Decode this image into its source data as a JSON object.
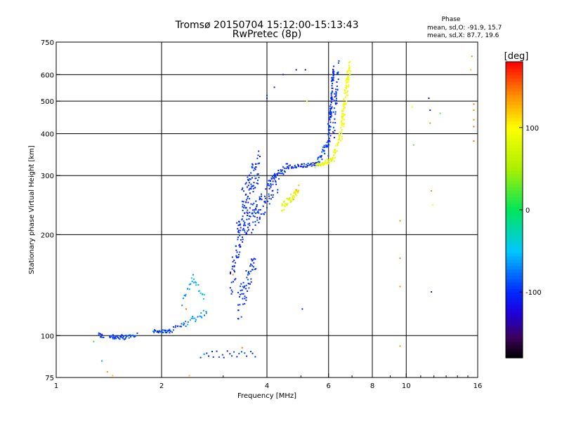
{
  "chart_data": {
    "type": "scatter",
    "title": "Tromsø 20150704 15:12:00-15:13:43",
    "subtitle": "RwPretec (8p)",
    "xlabel": "Frequency [MHz]",
    "ylabel": "Stationary phase Virtual Height [km]",
    "x_scale": "log",
    "y_scale": "log",
    "xlim": [
      1,
      16
    ],
    "ylim": [
      75,
      750
    ],
    "x_ticks": [
      1,
      2,
      4,
      6,
      8,
      10,
      16
    ],
    "x_tick_labels": [
      "1",
      "2",
      "4",
      "6",
      "8",
      "10",
      "16"
    ],
    "y_ticks": [
      75,
      100,
      200,
      300,
      400,
      500,
      600,
      750
    ],
    "y_tick_labels": [
      "75",
      "100",
      "200",
      "300",
      "400",
      "500",
      "600",
      "750"
    ],
    "grid": true,
    "phase_info": {
      "heading": "Phase",
      "line_o": "mean, sd,O: -91.9, 15.7",
      "line_x": "mean, sd,X:  87.7, 19.6"
    },
    "colorbar": {
      "label": "[deg]",
      "min": -180,
      "max": 180,
      "ticks": [
        100,
        0,
        -100
      ],
      "tick_labels": [
        "100",
        "0",
        "-100"
      ],
      "colormap": "rainbow"
    },
    "segments": [
      {
        "trace": "O",
        "phase": -100,
        "x0": 1.32,
        "x1": 1.36,
        "y0": 101,
        "y1": 99,
        "n": 10,
        "spread_y": 1.5
      },
      {
        "trace": "O",
        "phase": -95,
        "x0": 1.42,
        "x1": 1.58,
        "y0": 100,
        "y1": 98,
        "n": 30,
        "spread_y": 2
      },
      {
        "trace": "O",
        "phase": -90,
        "x0": 1.58,
        "x1": 1.7,
        "y0": 99,
        "y1": 101,
        "n": 16,
        "spread_y": 1.5
      },
      {
        "trace": "O",
        "phase": -95,
        "x0": 1.9,
        "x1": 2.1,
        "y0": 103,
        "y1": 103,
        "n": 30,
        "spread_y": 1
      },
      {
        "trace": "O",
        "phase": -95,
        "x0": 2.1,
        "x1": 2.3,
        "y0": 103,
        "y1": 108,
        "n": 14,
        "spread_y": 2
      },
      {
        "trace": "O",
        "phase": -70,
        "x0": 2.3,
        "x1": 2.7,
        "y0": 108,
        "y1": 118,
        "n": 22,
        "spread_y": 3
      },
      {
        "trace": "O",
        "phase": -60,
        "x0": 2.3,
        "x1": 2.45,
        "y0": 125,
        "y1": 150,
        "n": 12,
        "spread_y": 3
      },
      {
        "trace": "O",
        "phase": -55,
        "x0": 2.45,
        "x1": 2.65,
        "y0": 150,
        "y1": 128,
        "n": 14,
        "spread_y": 3
      },
      {
        "trace": "O",
        "phase": -100,
        "x0": 3.15,
        "x1": 3.35,
        "y0": 140,
        "y1": 200,
        "n": 40,
        "spread_y": 18
      },
      {
        "trace": "O",
        "phase": -100,
        "x0": 3.3,
        "x1": 3.7,
        "y0": 120,
        "y1": 170,
        "n": 60,
        "spread_y": 14
      },
      {
        "trace": "O",
        "phase": -100,
        "x0": 3.3,
        "x1": 3.8,
        "y0": 200,
        "y1": 240,
        "n": 80,
        "spread_y": 22
      },
      {
        "trace": "O",
        "phase": -100,
        "x0": 3.4,
        "x1": 3.8,
        "y0": 240,
        "y1": 330,
        "n": 80,
        "spread_y": 35
      },
      {
        "trace": "O",
        "phase": -100,
        "x0": 3.8,
        "x1": 4.3,
        "y0": 240,
        "y1": 290,
        "n": 50,
        "spread_y": 22
      },
      {
        "trace": "O",
        "phase": -100,
        "x0": 4.0,
        "x1": 4.6,
        "y0": 280,
        "y1": 320,
        "n": 40,
        "spread_y": 10
      },
      {
        "trace": "O",
        "phase": -100,
        "x0": 4.6,
        "x1": 5.6,
        "y0": 318,
        "y1": 325,
        "n": 50,
        "spread_y": 4
      },
      {
        "trace": "O",
        "phase": -90,
        "x0": 5.6,
        "x1": 6.0,
        "y0": 330,
        "y1": 380,
        "n": 30,
        "spread_y": 10
      },
      {
        "trace": "O",
        "phase": -100,
        "x0": 6.0,
        "x1": 6.2,
        "y0": 380,
        "y1": 630,
        "n": 90,
        "spread_y": 40
      },
      {
        "trace": "O",
        "phase": -100,
        "x0": 6.2,
        "x1": 6.4,
        "y0": 420,
        "y1": 620,
        "n": 40,
        "spread_y": 40
      },
      {
        "trace": "O",
        "phase": -100,
        "x0": 2.6,
        "x1": 3.7,
        "y0": 88,
        "y1": 88,
        "n": 22,
        "spread_y": 2
      },
      {
        "trace": "X",
        "phase": 80,
        "x0": 4.4,
        "x1": 4.9,
        "y0": 240,
        "y1": 270,
        "n": 45,
        "spread_y": 6
      },
      {
        "trace": "X",
        "phase": 120,
        "x0": 4.75,
        "x1": 4.95,
        "y0": 255,
        "y1": 275,
        "n": 8,
        "spread_y": 6
      },
      {
        "trace": "X",
        "phase": 85,
        "x0": 5.5,
        "x1": 6.2,
        "y0": 320,
        "y1": 335,
        "n": 40,
        "spread_y": 5
      },
      {
        "trace": "X",
        "phase": 90,
        "x0": 6.2,
        "x1": 6.5,
        "y0": 340,
        "y1": 400,
        "n": 30,
        "spread_y": 10
      },
      {
        "trace": "X",
        "phase": 95,
        "x0": 6.5,
        "x1": 6.9,
        "y0": 400,
        "y1": 640,
        "n": 90,
        "spread_y": 40
      }
    ],
    "scatter_points": [
      {
        "x": 1.28,
        "y": 96,
        "phase": 10
      },
      {
        "x": 1.4,
        "y": 78,
        "phase": 140
      },
      {
        "x": 1.45,
        "y": 76,
        "phase": 120
      },
      {
        "x": 1.35,
        "y": 84,
        "phase": -60
      },
      {
        "x": 2.35,
        "y": 120,
        "phase": 150
      },
      {
        "x": 2.4,
        "y": 76,
        "phase": 120
      },
      {
        "x": 2.65,
        "y": 88,
        "phase": -40
      },
      {
        "x": 3.2,
        "y": 152,
        "phase": 140
      },
      {
        "x": 3.4,
        "y": 92,
        "phase": 150
      },
      {
        "x": 4.0,
        "y": 520,
        "phase": -90
      },
      {
        "x": 4.0,
        "y": 510,
        "phase": -100
      },
      {
        "x": 4.2,
        "y": 550,
        "phase": -110
      },
      {
        "x": 4.45,
        "y": 600,
        "phase": -100
      },
      {
        "x": 4.85,
        "y": 620,
        "phase": -120
      },
      {
        "x": 5.15,
        "y": 620,
        "phase": -140
      },
      {
        "x": 5.2,
        "y": 500,
        "phase": 100
      },
      {
        "x": 5.05,
        "y": 120,
        "phase": -100
      },
      {
        "x": 9.6,
        "y": 220,
        "phase": 140
      },
      {
        "x": 9.6,
        "y": 170,
        "phase": 140
      },
      {
        "x": 9.6,
        "y": 140,
        "phase": 140
      },
      {
        "x": 9.6,
        "y": 93,
        "phase": 140
      },
      {
        "x": 10.4,
        "y": 480,
        "phase": 100
      },
      {
        "x": 10.5,
        "y": 370,
        "phase": 30
      },
      {
        "x": 11.6,
        "y": 510,
        "phase": -140
      },
      {
        "x": 11.7,
        "y": 470,
        "phase": -100
      },
      {
        "x": 11.7,
        "y": 430,
        "phase": 140
      },
      {
        "x": 11.8,
        "y": 270,
        "phase": 140
      },
      {
        "x": 11.9,
        "y": 245,
        "phase": 100
      },
      {
        "x": 11.8,
        "y": 135,
        "phase": -100
      },
      {
        "x": 12.5,
        "y": 460,
        "phase": 30
      },
      {
        "x": 15.4,
        "y": 680,
        "phase": 140
      },
      {
        "x": 15.3,
        "y": 620,
        "phase": 120
      },
      {
        "x": 15.6,
        "y": 490,
        "phase": 150
      },
      {
        "x": 15.6,
        "y": 470,
        "phase": 140
      },
      {
        "x": 15.6,
        "y": 440,
        "phase": 140
      },
      {
        "x": 15.6,
        "y": 420,
        "phase": 150
      },
      {
        "x": 15.6,
        "y": 380,
        "phase": 150
      }
    ]
  }
}
